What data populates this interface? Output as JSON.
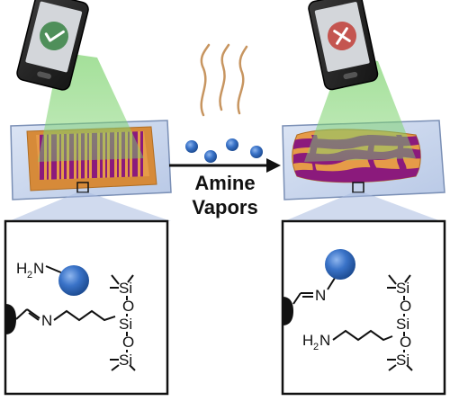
{
  "arrow_label": {
    "line1": "Amine",
    "line2": "Vapors"
  },
  "phones": {
    "before": {
      "status_icon": "check-icon",
      "status_color": "#4f8f5a"
    },
    "after": {
      "status_icon": "x-icon",
      "status_color": "#c45550"
    }
  },
  "barcode": {
    "label_color": "#e0913a",
    "bar_color": "#8b1a7c"
  },
  "molecule_left": {
    "amine_H": "H",
    "amine_sub": "2",
    "amine_N": "N",
    "imine_N": "N",
    "si_top": "Si",
    "o_top": "O",
    "si_mid": "Si",
    "o_bot": "O",
    "si_bot": "Si"
  },
  "molecule_right": {
    "imine_N": "N",
    "amine_H": "H",
    "amine_sub": "2",
    "amine_N": "N",
    "si_top": "Si",
    "o_top": "O",
    "si_mid": "Si",
    "o_bot": "O",
    "si_bot": "Si"
  },
  "colors": {
    "glass": "#c9d6ec",
    "beam": "#7ed36f",
    "sphere": "#3a73c8",
    "vapor": "#c79560"
  }
}
